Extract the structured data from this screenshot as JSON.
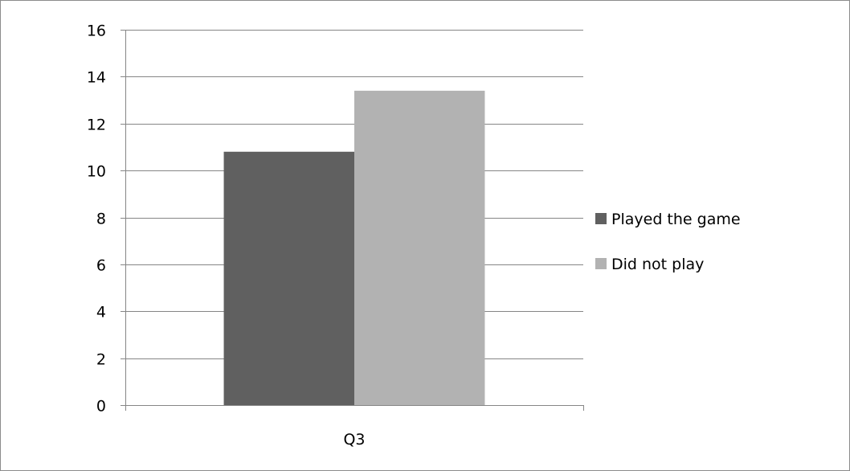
{
  "chart_data": {
    "type": "bar",
    "categories": [
      "Q3"
    ],
    "series": [
      {
        "name": "Played the game",
        "values": [
          10.8
        ],
        "color": "#606060"
      },
      {
        "name": "Did not play",
        "values": [
          13.4
        ],
        "color": "#b2b2b2"
      }
    ],
    "title": "",
    "xlabel": "",
    "ylabel": "",
    "ylim": [
      0,
      16
    ],
    "yticks": [
      "0",
      "2",
      "4",
      "6",
      "8",
      "10",
      "12",
      "14",
      "16"
    ],
    "grid": true,
    "legend_position": "right"
  },
  "colors": {
    "gridline": "#868686",
    "axis": "#868686",
    "border": "#8c8c8c"
  }
}
